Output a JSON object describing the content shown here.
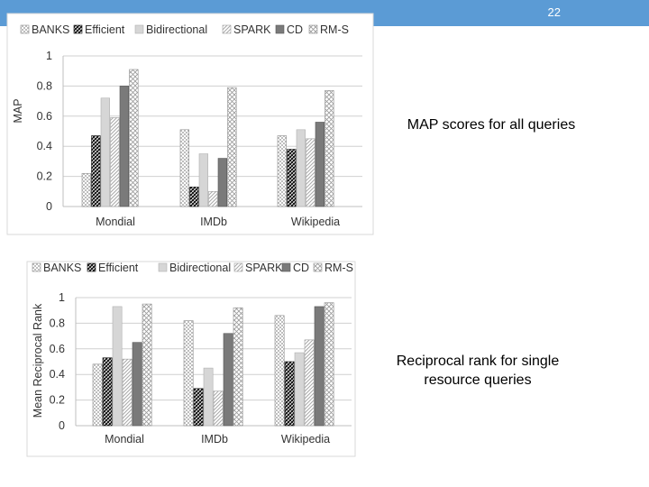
{
  "slide": {
    "number": "22"
  },
  "captions": {
    "map": "MAP scores for all queries",
    "rr_line1": "Reciprocal rank for single",
    "rr_line2": "resource queries"
  },
  "colors": {
    "header_bar": "#5b9bd5"
  },
  "chart_data": [
    {
      "type": "bar",
      "title": "",
      "xlabel": "",
      "ylabel": "MAP",
      "ylim": [
        0,
        1
      ],
      "yticks": [
        "0",
        "0.2",
        "0.4",
        "0.6",
        "0.8",
        "1"
      ],
      "categories": [
        "Mondial",
        "IMDb",
        "Wikipedia"
      ],
      "legend_placement": "top",
      "grid": true,
      "series": [
        {
          "name": "BANKS",
          "values": [
            0.22,
            0.51,
            0.47
          ]
        },
        {
          "name": "Efficient",
          "values": [
            0.47,
            0.13,
            0.38
          ]
        },
        {
          "name": "Bidirectional",
          "values": [
            0.72,
            0.35,
            0.51
          ]
        },
        {
          "name": "SPARK",
          "values": [
            0.59,
            0.1,
            0.45
          ]
        },
        {
          "name": "CD",
          "values": [
            0.8,
            0.32,
            0.56
          ]
        },
        {
          "name": "RM-S",
          "values": [
            0.91,
            0.79,
            0.77
          ]
        }
      ]
    },
    {
      "type": "bar",
      "title": "",
      "xlabel": "",
      "ylabel": "Mean Reciprocal Rank",
      "ylim": [
        0,
        1
      ],
      "yticks": [
        "0",
        "0.2",
        "0.4",
        "0.6",
        "0.8",
        "1"
      ],
      "categories": [
        "Mondial",
        "IMDb",
        "Wikipedia"
      ],
      "legend_placement": "top",
      "grid": true,
      "series": [
        {
          "name": "BANKS",
          "values": [
            0.48,
            0.82,
            0.86
          ]
        },
        {
          "name": "Efficient",
          "values": [
            0.53,
            0.29,
            0.5
          ]
        },
        {
          "name": "Bidirectional",
          "values": [
            0.93,
            0.45,
            0.57
          ]
        },
        {
          "name": "SPARK",
          "values": [
            0.52,
            0.27,
            0.67
          ]
        },
        {
          "name": "CD",
          "values": [
            0.65,
            0.72,
            0.93
          ]
        },
        {
          "name": "RM-S",
          "values": [
            0.95,
            0.92,
            0.96
          ]
        }
      ]
    }
  ]
}
